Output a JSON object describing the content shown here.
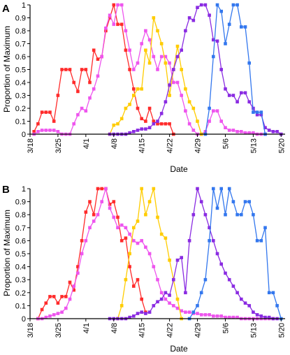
{
  "chart_data": [
    {
      "type": "line",
      "panel_label": "A",
      "xlabel": "Date",
      "ylabel": "Proportion of Maximum",
      "x_tick_labels": [
        "3/18",
        "3/25",
        "4/1",
        "4/8",
        "4/15",
        "4/22",
        "4/29",
        "5/6",
        "5/13",
        "5/20"
      ],
      "y_tick_labels": [
        "0",
        "0.1",
        "0.2",
        "0.3",
        "0.4",
        "0.5",
        "0.6",
        "0.7",
        "0.8",
        "0.9",
        "1"
      ],
      "xlim": [
        0,
        64
      ],
      "ylim": [
        0,
        1
      ],
      "grid": false,
      "legend": "none",
      "series": [
        {
          "color": "#ff2b2b",
          "x": [
            1,
            2,
            3,
            4,
            5,
            6,
            7,
            8,
            9,
            10,
            11,
            12,
            13,
            14,
            15,
            16,
            17,
            18,
            19,
            20,
            21,
            22,
            23,
            24,
            25,
            26,
            27,
            28,
            29,
            30,
            31,
            32,
            33,
            34,
            35,
            36
          ],
          "y": [
            0.02,
            0.08,
            0.17,
            0.17,
            0.17,
            0.1,
            0.3,
            0.5,
            0.5,
            0.5,
            0.4,
            0.33,
            0.5,
            0.5,
            0.4,
            0.65,
            0.58,
            0.6,
            0.8,
            0.9,
            1.0,
            0.85,
            0.85,
            0.65,
            0.5,
            0.35,
            0.2,
            0.12,
            0.1,
            0.2,
            0.1,
            0.08,
            0.08,
            0.08,
            0.08,
            0.0
          ]
        },
        {
          "color": "#ee55ee",
          "x": [
            1,
            2,
            3,
            4,
            5,
            6,
            7,
            8,
            9,
            10,
            11,
            12,
            13,
            14,
            15,
            16,
            17,
            18,
            19,
            20,
            21,
            22,
            23,
            24,
            25,
            26,
            27,
            28,
            29,
            30,
            31,
            32,
            33,
            34,
            35,
            36,
            37,
            38,
            39,
            40,
            41,
            42,
            43,
            44,
            45,
            46,
            47,
            48,
            49,
            50,
            51,
            52,
            53,
            54,
            55,
            56,
            57,
            58,
            59
          ],
          "y": [
            0.0,
            0.02,
            0.03,
            0.03,
            0.03,
            0.03,
            0.02,
            0.0,
            0.0,
            0.0,
            0.08,
            0.15,
            0.2,
            0.18,
            0.28,
            0.35,
            0.45,
            0.6,
            0.82,
            0.92,
            0.85,
            1.0,
            1.0,
            0.8,
            0.65,
            0.5,
            0.55,
            0.7,
            0.8,
            0.73,
            0.6,
            0.5,
            0.6,
            0.6,
            0.55,
            0.4,
            0.4,
            0.3,
            0.18,
            0.08,
            0.03,
            0.0,
            0.0,
            0.02,
            0.1,
            0.18,
            0.18,
            0.1,
            0.05,
            0.03,
            0.03,
            0.02,
            0.02,
            0.01,
            0.01,
            0.01,
            0.0,
            0.0,
            0.0
          ]
        },
        {
          "color": "#ffcc00",
          "x": [
            20,
            21,
            22,
            23,
            24,
            25,
            26,
            27,
            28,
            29,
            30,
            31,
            32,
            33,
            34,
            35,
            36,
            37,
            38,
            39,
            40,
            41,
            42,
            43
          ],
          "y": [
            0.0,
            0.07,
            0.08,
            0.12,
            0.2,
            0.23,
            0.3,
            0.35,
            0.35,
            0.65,
            0.55,
            0.9,
            0.8,
            0.7,
            0.55,
            0.3,
            0.5,
            0.68,
            0.5,
            0.35,
            0.25,
            0.2,
            0.1,
            0.0
          ]
        },
        {
          "color": "#8a2be2",
          "x": [
            20,
            21,
            22,
            23,
            24,
            25,
            26,
            27,
            28,
            29,
            30,
            31,
            32,
            33,
            34,
            35,
            36,
            37,
            38,
            39,
            40,
            41,
            42,
            43,
            44,
            45,
            46,
            47,
            48,
            49,
            50,
            51,
            52,
            53,
            54,
            55,
            56,
            57,
            58,
            59,
            60,
            61,
            62,
            63
          ],
          "y": [
            0.0,
            0.0,
            0.0,
            0.0,
            0.0,
            0.01,
            0.02,
            0.03,
            0.04,
            0.04,
            0.05,
            0.08,
            0.1,
            0.16,
            0.25,
            0.38,
            0.5,
            0.6,
            0.65,
            0.8,
            0.9,
            0.88,
            0.98,
            1.0,
            1.0,
            0.92,
            0.73,
            0.72,
            0.5,
            0.35,
            0.3,
            0.3,
            0.25,
            0.32,
            0.32,
            0.25,
            0.2,
            0.15,
            0.15,
            0.05,
            0.03,
            0.02,
            0.02,
            0.0
          ]
        },
        {
          "color": "#3377ee",
          "x": [
            44,
            45,
            46,
            47,
            48,
            49,
            50,
            51,
            52,
            53,
            54,
            55,
            56,
            57,
            58,
            59
          ],
          "y": [
            0.0,
            0.2,
            0.6,
            1.0,
            0.95,
            0.7,
            0.85,
            1.0,
            1.0,
            0.83,
            0.83,
            0.55,
            0.17,
            0.17,
            0.17,
            0.0
          ]
        }
      ]
    },
    {
      "type": "line",
      "panel_label": "B",
      "xlabel": "Date",
      "ylabel": "Proportion of Maximum",
      "x_tick_labels": [
        "3/18",
        "3/25",
        "4/1",
        "4/8",
        "4/15",
        "4/22",
        "4/29",
        "5/6",
        "5/13",
        "5/20"
      ],
      "y_tick_labels": [
        "0",
        "0.1",
        "0.2",
        "0.3",
        "0.4",
        "0.5",
        "0.6",
        "0.7",
        "0.8",
        "0.9",
        "1"
      ],
      "xlim": [
        0,
        64
      ],
      "ylim": [
        0,
        1
      ],
      "grid": false,
      "legend": "none",
      "series": [
        {
          "color": "#ff2b2b",
          "x": [
            2,
            3,
            4,
            5,
            6,
            7,
            8,
            9,
            10,
            11,
            12,
            13,
            14,
            15,
            16,
            17,
            18,
            19,
            20,
            21,
            22,
            23,
            24,
            25,
            26,
            27,
            28,
            29
          ],
          "y": [
            0.0,
            0.07,
            0.12,
            0.17,
            0.17,
            0.12,
            0.17,
            0.17,
            0.28,
            0.22,
            0.4,
            0.6,
            0.82,
            0.9,
            0.8,
            1.0,
            1.0,
            1.0,
            0.88,
            0.9,
            0.78,
            0.6,
            0.62,
            0.4,
            0.25,
            0.3,
            0.15,
            0.05
          ]
        },
        {
          "color": "#ee55ee",
          "x": [
            2,
            3,
            4,
            5,
            6,
            7,
            8,
            9,
            10,
            11,
            12,
            13,
            14,
            15,
            16,
            17,
            18,
            19,
            20,
            21,
            22,
            23,
            24,
            25,
            26,
            27,
            28,
            29,
            30,
            31,
            32,
            33,
            34,
            35,
            36,
            37,
            38,
            39,
            40,
            41,
            42,
            43,
            44,
            45,
            46,
            47,
            48,
            49,
            50,
            51,
            52,
            53,
            54,
            55,
            56,
            57,
            58,
            59,
            60,
            61
          ],
          "y": [
            0.0,
            0.0,
            0.01,
            0.02,
            0.03,
            0.04,
            0.05,
            0.08,
            0.15,
            0.25,
            0.35,
            0.5,
            0.6,
            0.7,
            0.75,
            0.8,
            0.9,
            1.0,
            0.85,
            0.78,
            0.7,
            0.72,
            0.7,
            0.65,
            0.6,
            0.58,
            0.6,
            0.55,
            0.5,
            0.4,
            0.3,
            0.2,
            0.15,
            0.12,
            0.1,
            0.08,
            0.06,
            0.05,
            0.05,
            0.04,
            0.04,
            0.03,
            0.03,
            0.03,
            0.02,
            0.02,
            0.02,
            0.01,
            0.01,
            0.01,
            0.01,
            0.0,
            0.0,
            0.0,
            0.0,
            0.0,
            0.0,
            0.0,
            0.0,
            0.0
          ]
        },
        {
          "color": "#ffcc00",
          "x": [
            22,
            23,
            24,
            25,
            26,
            27,
            28,
            29,
            30,
            31,
            32,
            33,
            34,
            35,
            36,
            37,
            38
          ],
          "y": [
            0.0,
            0.1,
            0.3,
            0.5,
            0.7,
            0.75,
            1.0,
            0.8,
            0.9,
            1.0,
            0.78,
            0.65,
            0.62,
            0.45,
            0.3,
            0.15,
            0.0
          ]
        },
        {
          "color": "#8a2be2",
          "x": [
            20,
            21,
            22,
            23,
            24,
            25,
            26,
            27,
            28,
            29,
            30,
            31,
            32,
            33,
            34,
            35,
            36,
            37,
            38,
            39,
            40,
            41,
            42,
            43,
            44,
            45,
            46,
            47,
            48,
            49,
            50,
            51,
            52,
            53,
            54,
            55,
            56,
            57,
            58,
            59,
            60,
            61,
            62
          ],
          "y": [
            0.0,
            0.0,
            0.0,
            0.0,
            0.0,
            0.01,
            0.02,
            0.04,
            0.05,
            0.04,
            0.05,
            0.1,
            0.13,
            0.15,
            0.2,
            0.18,
            0.3,
            0.45,
            0.47,
            0.2,
            0.6,
            0.8,
            1.0,
            0.9,
            0.8,
            0.7,
            0.6,
            0.5,
            0.42,
            0.35,
            0.3,
            0.25,
            0.2,
            0.15,
            0.12,
            0.1,
            0.05,
            0.03,
            0.02,
            0.01,
            0.01,
            0.0,
            0.0
          ]
        },
        {
          "color": "#3377ee",
          "x": [
            40,
            41,
            42,
            43,
            44,
            45,
            46,
            47,
            48,
            49,
            50,
            51,
            52,
            53,
            54,
            55,
            56,
            57,
            58,
            59,
            60,
            61,
            62,
            63
          ],
          "y": [
            0.0,
            0.05,
            0.1,
            0.2,
            0.3,
            0.6,
            1.0,
            0.85,
            1.0,
            0.8,
            1.0,
            0.9,
            0.8,
            0.8,
            0.9,
            0.9,
            0.8,
            0.6,
            0.6,
            0.7,
            0.2,
            0.2,
            0.1,
            0.0
          ]
        }
      ]
    }
  ]
}
